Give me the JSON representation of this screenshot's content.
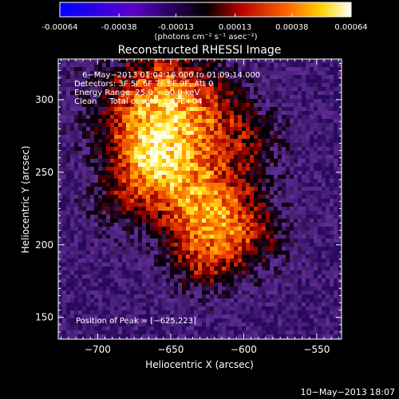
{
  "colorbar": {
    "tick_labels": [
      "-0.00064",
      "-0.00038",
      "-0.00013",
      "0.00013",
      "0.00038",
      "0.00064"
    ],
    "tick_values": [
      -0.00064,
      -0.00038,
      -0.00013,
      0.00013,
      0.00038,
      0.00064
    ],
    "units_label": "(photons cm⁻² s⁻¹ asec⁻²)"
  },
  "chart_data": {
    "type": "heatmap",
    "title": "Reconstructed RHESSI Image",
    "xlabel": "Heliocentric X (arcsec)",
    "ylabel": "Heliocentric Y (arcsec)",
    "xlim": [
      -727,
      -533
    ],
    "ylim": [
      135,
      328
    ],
    "x_ticks": [
      -700,
      -650,
      -600,
      -550
    ],
    "y_ticks": [
      150,
      200,
      250,
      300
    ],
    "x_tick_labels": [
      "−700",
      "−650",
      "−600",
      "−550"
    ],
    "y_tick_labels": [
      "150",
      "200",
      "250",
      "300"
    ],
    "peak": [
      -625,
      223
    ],
    "annotations": [
      "6−May−2013 01:04:16.000 to 01:09:14.000",
      "Detectors: 3F 5F 6F 7F 8F 9F, Att 0",
      "Energy Range: 25.0 − 50.0 keV",
      "Clean     Total counts: 1.67E+04"
    ],
    "peak_label": "Position of Peak = [−625,223]"
  },
  "footer": {
    "date": "10−May−2013 18:07"
  },
  "colors": {
    "background": "#000000",
    "axes": "#ffffff",
    "text": "#ffffff"
  }
}
